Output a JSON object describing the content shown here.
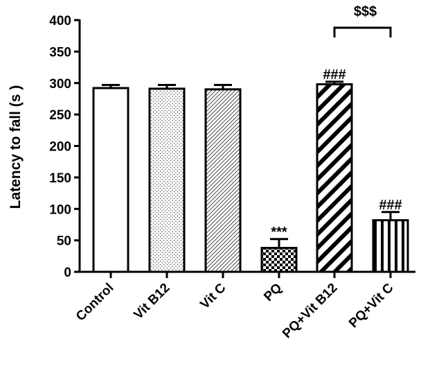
{
  "chart_data": {
    "type": "bar",
    "title": "",
    "xlabel": "",
    "ylabel": "Latency to fall (s )",
    "ylim": [
      0,
      400
    ],
    "yticks": [
      0,
      50,
      100,
      150,
      200,
      250,
      300,
      350,
      400
    ],
    "grid": false,
    "categories": [
      "Control",
      "Vit B12",
      "Vit C",
      "PQ",
      "PQ+Vit B12",
      "PQ+Vit C"
    ],
    "values": [
      292,
      291,
      290,
      38,
      298,
      82
    ],
    "errors": [
      5,
      6,
      7,
      14,
      4,
      13
    ],
    "patterns": [
      "none",
      "dots",
      "dense-diagonal",
      "checker",
      "wide-diagonal",
      "vertical"
    ],
    "annotations": [
      "",
      "",
      "",
      "***",
      "###",
      "###"
    ],
    "bracket": {
      "from": "PQ+Vit B12",
      "to": "PQ+Vit C",
      "label": "$$$"
    }
  }
}
